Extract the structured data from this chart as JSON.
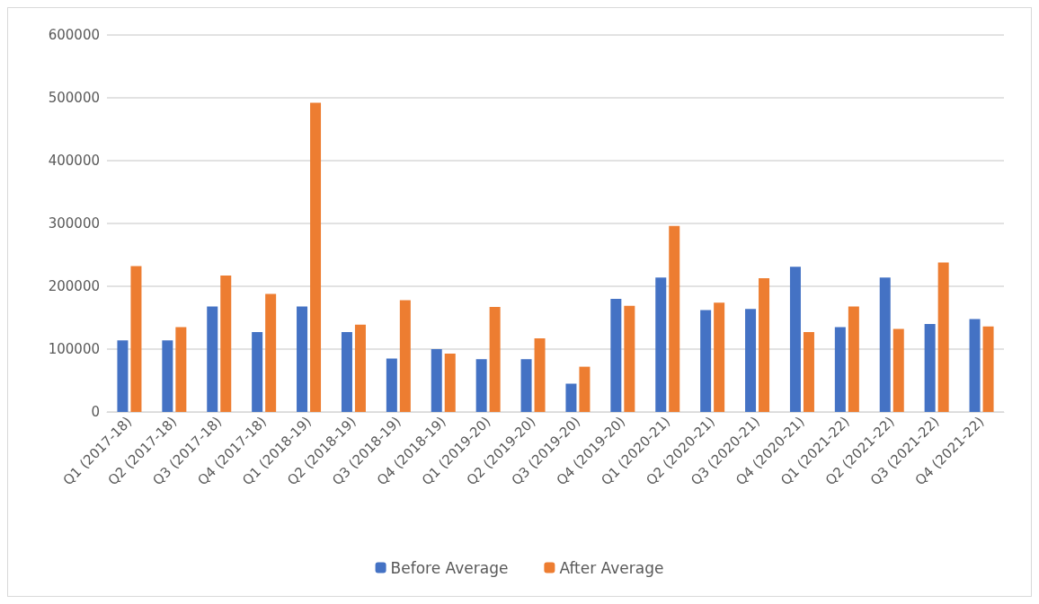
{
  "chart_data": {
    "type": "bar",
    "categories": [
      "Q1 (2017-18)",
      "Q2 (2017-18)",
      "Q3 (2017-18)",
      "Q4 (2017-18)",
      "Q1 (2018-19)",
      "Q2 (2018-19)",
      "Q3 (2018-19)",
      "Q4 (2018-19)",
      "Q1 (2019-20)",
      "Q2 (2019-20)",
      "Q3 (2019-20)",
      "Q4 (2019-20)",
      "Q1 (2020-21)",
      "Q2 (2020-21)",
      "Q3 (2020-21)",
      "Q4 (2020-21)",
      "Q1 (2021-22)",
      "Q2 (2021-22)",
      "Q3 (2021-22)",
      "Q4 (2021-22)"
    ],
    "series": [
      {
        "name": "Before Average",
        "color": "#4472c4",
        "values": [
          114000,
          114000,
          168000,
          127000,
          168000,
          127000,
          85000,
          100000,
          84000,
          84000,
          45000,
          180000,
          214000,
          162000,
          164000,
          231000,
          135000,
          214000,
          140000,
          148000
        ]
      },
      {
        "name": "After Average",
        "color": "#ed7d31",
        "values": [
          232000,
          135000,
          217000,
          188000,
          492000,
          139000,
          178000,
          93000,
          167000,
          117000,
          72000,
          169000,
          296000,
          174000,
          213000,
          127000,
          168000,
          132000,
          238000,
          136000
        ]
      }
    ],
    "ylim": [
      0,
      600000
    ],
    "yticks": [
      0,
      100000,
      200000,
      300000,
      400000,
      500000,
      600000
    ],
    "grid": "y",
    "legend": "bottom"
  }
}
